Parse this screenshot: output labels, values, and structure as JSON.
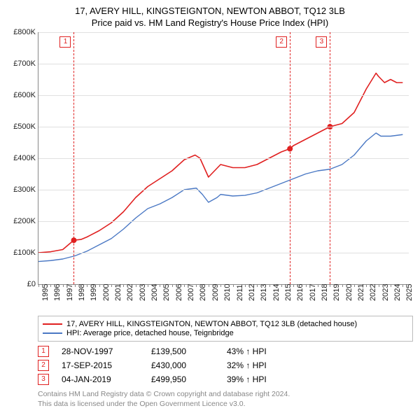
{
  "title_line1": "17, AVERY HILL, KINGSTEIGNTON, NEWTON ABBOT, TQ12 3LB",
  "title_line2": "Price paid vs. HM Land Registry's House Price Index (HPI)",
  "chart": {
    "type": "line",
    "ylim": [
      0,
      800000
    ],
    "ytick_step": 100000,
    "ytick_labels": [
      "£0",
      "£100K",
      "£200K",
      "£300K",
      "£400K",
      "£500K",
      "£600K",
      "£700K",
      "£800K"
    ],
    "xlim": [
      1995,
      2025.5
    ],
    "xticks": [
      1995,
      1996,
      1997,
      1998,
      1999,
      2000,
      2001,
      2002,
      2003,
      2004,
      2005,
      2006,
      2007,
      2008,
      2009,
      2010,
      2011,
      2012,
      2013,
      2014,
      2015,
      2016,
      2017,
      2018,
      2019,
      2020,
      2021,
      2022,
      2023,
      2024,
      2025
    ],
    "grid_color": "#e0e0e0",
    "background_color": "#ffffff",
    "series": [
      {
        "name": "property",
        "label": "17, AVERY HILL, KINGSTEIGNTON, NEWTON ABBOT, TQ12 3LB (detached house)",
        "color": "#e02020",
        "width": 1.6,
        "points": [
          [
            1995.0,
            100000
          ],
          [
            1996.0,
            103000
          ],
          [
            1997.0,
            110000
          ],
          [
            1997.9,
            139500
          ],
          [
            1998.5,
            142000
          ],
          [
            1999.0,
            150000
          ],
          [
            2000.0,
            170000
          ],
          [
            2001.0,
            195000
          ],
          [
            2002.0,
            230000
          ],
          [
            2003.0,
            275000
          ],
          [
            2004.0,
            310000
          ],
          [
            2005.0,
            335000
          ],
          [
            2006.0,
            360000
          ],
          [
            2007.0,
            395000
          ],
          [
            2007.9,
            410000
          ],
          [
            2008.3,
            400000
          ],
          [
            2009.0,
            340000
          ],
          [
            2009.5,
            360000
          ],
          [
            2010.0,
            380000
          ],
          [
            2011.0,
            370000
          ],
          [
            2012.0,
            370000
          ],
          [
            2013.0,
            380000
          ],
          [
            2014.0,
            400000
          ],
          [
            2015.0,
            420000
          ],
          [
            2015.7,
            430000
          ],
          [
            2016.0,
            440000
          ],
          [
            2017.0,
            460000
          ],
          [
            2018.0,
            480000
          ],
          [
            2019.0,
            499950
          ],
          [
            2020.0,
            510000
          ],
          [
            2021.0,
            545000
          ],
          [
            2022.0,
            620000
          ],
          [
            2022.8,
            670000
          ],
          [
            2023.0,
            660000
          ],
          [
            2023.5,
            640000
          ],
          [
            2024.0,
            650000
          ],
          [
            2024.5,
            640000
          ],
          [
            2025.0,
            640000
          ]
        ]
      },
      {
        "name": "hpi",
        "label": "HPI: Average price, detached house, Teignbridge",
        "color": "#4a78c4",
        "width": 1.4,
        "points": [
          [
            1995.0,
            72000
          ],
          [
            1996.0,
            75000
          ],
          [
            1997.0,
            80000
          ],
          [
            1998.0,
            90000
          ],
          [
            1999.0,
            105000
          ],
          [
            2000.0,
            125000
          ],
          [
            2001.0,
            145000
          ],
          [
            2002.0,
            175000
          ],
          [
            2003.0,
            210000
          ],
          [
            2004.0,
            240000
          ],
          [
            2005.0,
            255000
          ],
          [
            2006.0,
            275000
          ],
          [
            2007.0,
            300000
          ],
          [
            2008.0,
            305000
          ],
          [
            2008.5,
            285000
          ],
          [
            2009.0,
            260000
          ],
          [
            2009.7,
            275000
          ],
          [
            2010.0,
            285000
          ],
          [
            2011.0,
            280000
          ],
          [
            2012.0,
            282000
          ],
          [
            2013.0,
            290000
          ],
          [
            2014.0,
            305000
          ],
          [
            2015.0,
            320000
          ],
          [
            2016.0,
            335000
          ],
          [
            2017.0,
            350000
          ],
          [
            2018.0,
            360000
          ],
          [
            2019.0,
            365000
          ],
          [
            2020.0,
            380000
          ],
          [
            2021.0,
            410000
          ],
          [
            2022.0,
            455000
          ],
          [
            2022.8,
            480000
          ],
          [
            2023.2,
            470000
          ],
          [
            2024.0,
            470000
          ],
          [
            2025.0,
            475000
          ]
        ]
      }
    ],
    "markers": [
      {
        "n": "1",
        "x": 1997.91,
        "y": 139500
      },
      {
        "n": "2",
        "x": 2015.71,
        "y": 430000
      },
      {
        "n": "3",
        "x": 2019.01,
        "y": 499950
      }
    ]
  },
  "legend": [
    {
      "color": "#e02020",
      "label": "17, AVERY HILL, KINGSTEIGNTON, NEWTON ABBOT, TQ12 3LB (detached house)"
    },
    {
      "color": "#4a78c4",
      "label": "HPI: Average price, detached house, Teignbridge"
    }
  ],
  "transactions": [
    {
      "n": "1",
      "date": "28-NOV-1997",
      "price": "£139,500",
      "pct": "43% ↑ HPI"
    },
    {
      "n": "2",
      "date": "17-SEP-2015",
      "price": "£430,000",
      "pct": "32% ↑ HPI"
    },
    {
      "n": "3",
      "date": "04-JAN-2019",
      "price": "£499,950",
      "pct": "39% ↑ HPI"
    }
  ],
  "footer_line1": "Contains HM Land Registry data © Crown copyright and database right 2024.",
  "footer_line2": "This data is licensed under the Open Government Licence v3.0."
}
